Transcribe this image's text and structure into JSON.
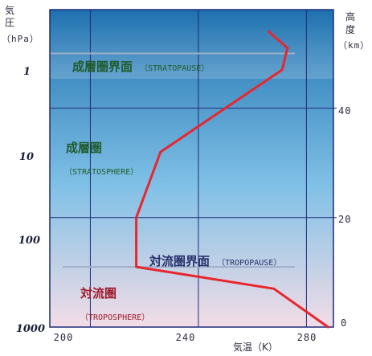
{
  "chart_data": {
    "type": "line",
    "title": "",
    "left_axis_title_chars": [
      "気",
      "圧"
    ],
    "left_axis_unit": "（hPa）",
    "right_axis_title_chars": [
      "高",
      "度"
    ],
    "right_axis_unit": "（km）",
    "xlabel": "気温（K）",
    "xlim": [
      185,
      290
    ],
    "x_ticks": [
      "200",
      "240",
      "280"
    ],
    "y_ticks_pressure": [
      "1",
      "10",
      "100",
      "1000"
    ],
    "y_ticks_altitude": [
      "40",
      "20",
      "0"
    ],
    "altitude_lim_km": [
      0,
      58
    ],
    "grid": true,
    "series": [
      {
        "x": [
          288,
          268,
          217,
          217,
          226,
          271,
          273,
          266
        ],
        "y_altitude_km": [
          0,
          7,
          11,
          20,
          32,
          47,
          51,
          54
        ],
        "color": "#e8262d"
      }
    ],
    "region_labels": [
      {
        "jp": "成層圏界面",
        "en": "（STRATOPAUSE）",
        "color": "#1f5b2a"
      },
      {
        "jp": "成層圏",
        "en": "（STRATOSPHERE）",
        "color": "#1f5b2a"
      },
      {
        "jp": "対流圏界面",
        "en": "（TROPOPAUSE）",
        "color": "#27306b"
      },
      {
        "jp": "対流圏",
        "en": "（TROPOSPHERE）",
        "color": "#9c1a2b"
      }
    ],
    "boundary_altitudes_km": [
      50,
      11
    ],
    "colors": {
      "sky_top": "#1c6fae",
      "sky_mid": "#7fc0e6",
      "sky_bottom": "#f3dde6",
      "frame": "#1d2b78",
      "grid": "#1d2b78",
      "boundary": "#9fb0c8"
    }
  }
}
